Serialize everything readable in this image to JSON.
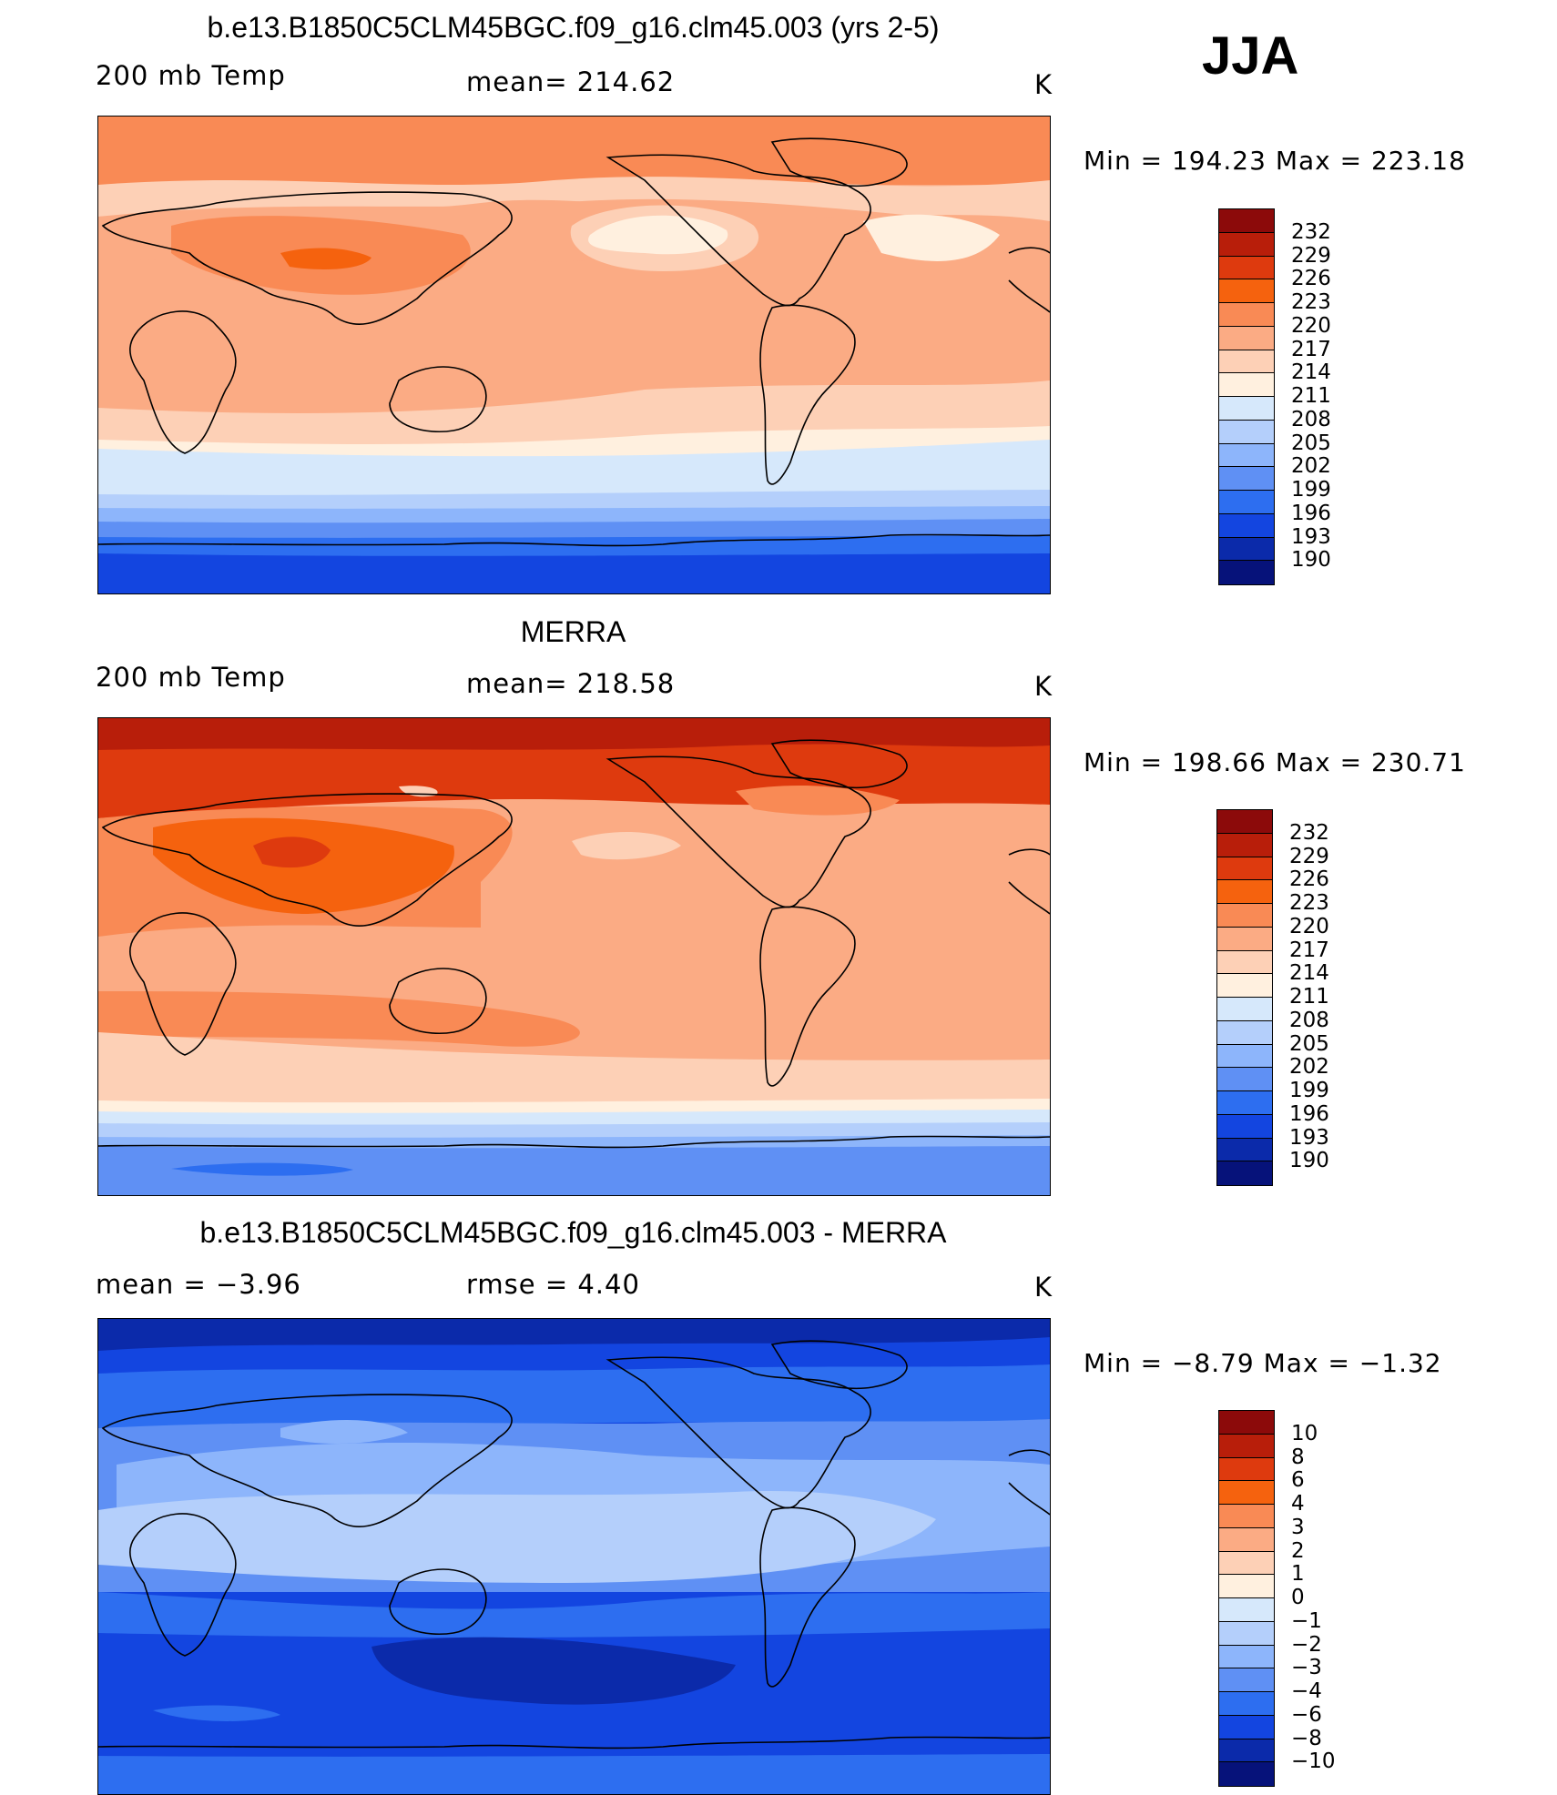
{
  "season": "JJA",
  "panels": [
    {
      "id": "model",
      "title": "b.e13.B1850C5CLM45BGC.f09_g16.clm45.003 (yrs 2-5)",
      "left_label": "200 mb Temp",
      "center_label": "mean= 214.62",
      "units": "K",
      "minmax": "Min = 194.23 Max = 223.18",
      "colorbar_labels": [
        "232",
        "229",
        "226",
        "223",
        "220",
        "217",
        "214",
        "211",
        "208",
        "205",
        "202",
        "199",
        "196",
        "193",
        "190"
      ],
      "colors": [
        "#8c0a0a",
        "#b81e0a",
        "#de3a0e",
        "#f5620e",
        "#f98a55",
        "#fbab84",
        "#fdd0b6",
        "#fff0df",
        "#d6e8fb",
        "#b4cffb",
        "#8db5fb",
        "#5f90f4",
        "#2d6ef0",
        "#1345e0",
        "#0b2aaa",
        "#06127a"
      ]
    },
    {
      "id": "obs",
      "title": "MERRA",
      "left_label": "200 mb Temp",
      "center_label": "mean= 218.58",
      "units": "K",
      "minmax": "Min = 198.66 Max = 230.71",
      "colorbar_labels": [
        "232",
        "229",
        "226",
        "223",
        "220",
        "217",
        "214",
        "211",
        "208",
        "205",
        "202",
        "199",
        "196",
        "193",
        "190"
      ],
      "colors": [
        "#8c0a0a",
        "#b81e0a",
        "#de3a0e",
        "#f5620e",
        "#f98a55",
        "#fbab84",
        "#fdd0b6",
        "#fff0df",
        "#d6e8fb",
        "#b4cffb",
        "#8db5fb",
        "#5f90f4",
        "#2d6ef0",
        "#1345e0",
        "#0b2aaa",
        "#06127a"
      ]
    },
    {
      "id": "diff",
      "title": "b.e13.B1850C5CLM45BGC.f09_g16.clm45.003 - MERRA",
      "left_label": "mean =   −3.96",
      "center_label": "rmse =    4.40",
      "units": "K",
      "minmax": "Min =  −8.79 Max =  −1.32",
      "colorbar_labels": [
        "10",
        "8",
        "6",
        "4",
        "3",
        "2",
        "1",
        "0",
        "−1",
        "−2",
        "−3",
        "−4",
        "−6",
        "−8",
        "−10"
      ],
      "colors": [
        "#8c0a0a",
        "#b81e0a",
        "#de3a0e",
        "#f5620e",
        "#f98a55",
        "#fbab84",
        "#fdd0b6",
        "#fff0df",
        "#d6e8fb",
        "#b4cffb",
        "#8db5fb",
        "#5f90f4",
        "#2d6ef0",
        "#1345e0",
        "#0b2aaa",
        "#06127a"
      ]
    }
  ]
}
